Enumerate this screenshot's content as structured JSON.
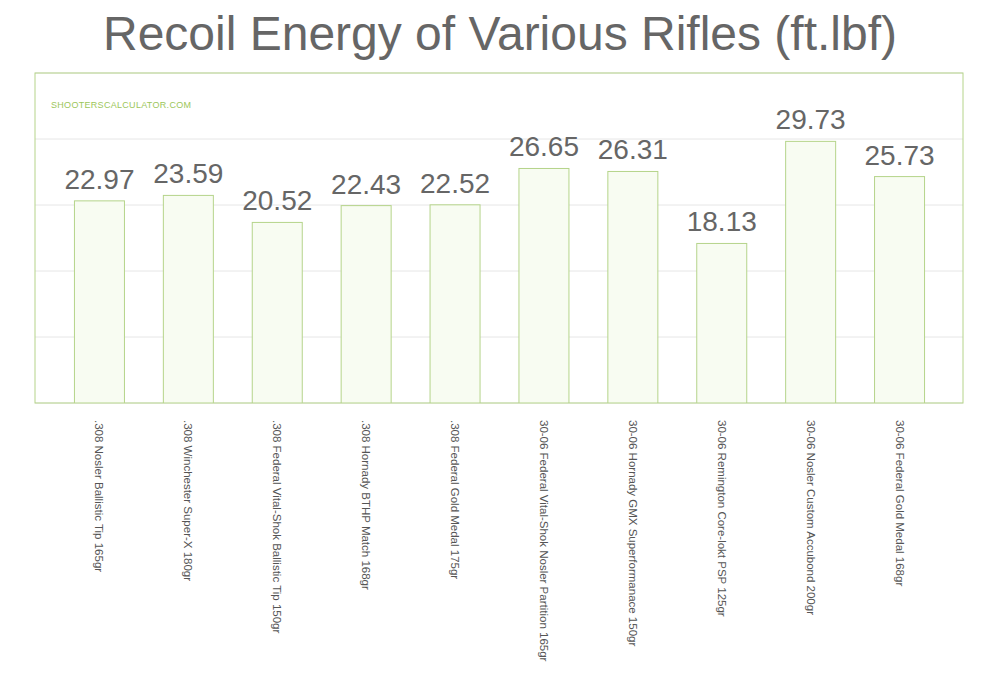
{
  "chart_data": {
    "type": "bar",
    "title": "Recoil Energy of Various Rifles (ft.lbf)",
    "annotation": "SHOOTERSCALCULATOR.COM",
    "categories": [
      ".308 Nosler Ballistic Tip 165gr",
      ".308 Winchester Super-X 180gr",
      ".308 Federal Vital-Shok Ballistic Tip 150gr",
      ".308 Hornady BTHP Match 168gr",
      ".308 Federal Gold Medal 175gr",
      "30-06 Federal Vital-Shok Nosler Partition 165gr",
      "30-06 Hornady GMX Superformanace 150gr",
      "30-06 Remington Core-lokt PSP 125gr",
      "30-06 Nosler Custom Accubond 200gr",
      "30-06 Federal Gold Medal 168gr"
    ],
    "values": [
      22.97,
      23.59,
      20.52,
      22.43,
      22.52,
      26.65,
      26.31,
      18.13,
      29.73,
      25.73
    ],
    "color": "#b5d48a",
    "ylim": [
      0,
      37.5
    ],
    "yticks": [
      0,
      7.5,
      15,
      22.5,
      30,
      37.5
    ],
    "grid": true,
    "data_labels": true,
    "tick_labels": false
  }
}
